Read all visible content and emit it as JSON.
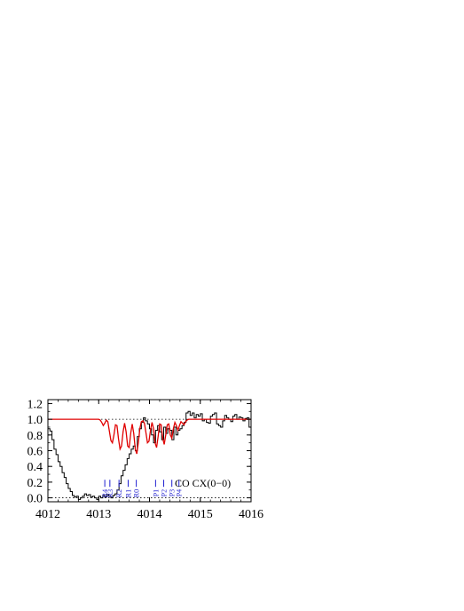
{
  "chart_data": {
    "type": "line",
    "title": "",
    "xlabel": "",
    "ylabel": "",
    "xlim": [
      4012,
      4016
    ],
    "ylim": [
      -0.05,
      1.25
    ],
    "xticks": [
      "4012",
      "4013",
      "4014",
      "4015",
      "4016"
    ],
    "yticks": [
      "0.0",
      "0.2",
      "0.4",
      "0.6",
      "0.8",
      "1.0",
      "1.2"
    ],
    "reference_lines_y": [
      0.0,
      1.0
    ],
    "colors": {
      "observed": "#000000",
      "model": "#e00000",
      "line_ids": "#1f1fd0"
    },
    "annotation": "CO CX(0−0)",
    "series": [
      {
        "style": "step",
        "x": [
          4012.0,
          4012.04,
          4012.08,
          4012.12,
          4012.16,
          4012.2,
          4012.24,
          4012.28,
          4012.32,
          4012.36,
          4012.4,
          4012.44,
          4012.48,
          4012.52,
          4012.56,
          4012.6,
          4012.64,
          4012.68,
          4012.72,
          4012.76,
          4012.8,
          4012.84,
          4012.88,
          4012.92,
          4012.96,
          4013.0,
          4013.04,
          4013.08,
          4013.12,
          4013.16,
          4013.2,
          4013.24,
          4013.28,
          4013.32,
          4013.36,
          4013.4,
          4013.44,
          4013.48,
          4013.52,
          4013.56,
          4013.6,
          4013.64,
          4013.68,
          4013.72,
          4013.76,
          4013.8,
          4013.84,
          4013.88,
          4013.92,
          4013.96,
          4014.0,
          4014.04,
          4014.08,
          4014.12,
          4014.16,
          4014.2,
          4014.24,
          4014.28,
          4014.32,
          4014.36,
          4014.4,
          4014.44,
          4014.48,
          4014.52,
          4014.56,
          4014.6,
          4014.64,
          4014.68,
          4014.72,
          4014.76,
          4014.8,
          4014.84,
          4014.88,
          4014.92,
          4014.96,
          4015.0,
          4015.04,
          4015.08,
          4015.12,
          4015.16,
          4015.2,
          4015.24,
          4015.28,
          4015.32,
          4015.36,
          4015.4,
          4015.44,
          4015.48,
          4015.52,
          4015.56,
          4015.6,
          4015.64,
          4015.68,
          4015.72,
          4015.76,
          4015.8,
          4015.84,
          4015.88,
          4015.92,
          4015.96
        ],
        "y": [
          0.88,
          0.85,
          0.74,
          0.62,
          0.55,
          0.46,
          0.4,
          0.32,
          0.26,
          0.18,
          0.12,
          0.08,
          0.03,
          0.01,
          0.02,
          -0.02,
          0.0,
          0.02,
          0.05,
          0.03,
          0.04,
          0.01,
          0.02,
          0.0,
          -0.02,
          0.02,
          0.0,
          0.03,
          0.01,
          0.04,
          0.02,
          0.0,
          0.03,
          0.05,
          0.1,
          0.18,
          0.28,
          0.35,
          0.42,
          0.5,
          0.56,
          0.62,
          0.66,
          0.6,
          0.78,
          0.88,
          0.96,
          1.02,
          0.98,
          0.94,
          0.88,
          0.8,
          0.7,
          0.86,
          0.92,
          0.84,
          0.74,
          0.9,
          0.82,
          0.88,
          0.86,
          0.74,
          0.9,
          0.8,
          0.86,
          0.88,
          0.92,
          0.96,
          1.08,
          1.1,
          1.05,
          1.08,
          1.02,
          1.06,
          1.04,
          1.07,
          0.98,
          1.0,
          0.96,
          0.95,
          1.04,
          1.06,
          1.08,
          0.94,
          0.92,
          0.9,
          0.98,
          1.05,
          1.02,
          1.0,
          0.97,
          1.04,
          1.06,
          1.0,
          1.03,
          1.02,
          0.98,
          1.01,
          1.02,
          0.9
        ]
      },
      {
        "style": "line",
        "x": [
          4012.0,
          4012.1,
          4012.2,
          4012.3,
          4012.4,
          4012.5,
          4012.6,
          4012.7,
          4012.8,
          4012.9,
          4013.0,
          4013.03,
          4013.06,
          4013.09,
          4013.12,
          4013.15,
          4013.18,
          4013.21,
          4013.24,
          4013.27,
          4013.3,
          4013.33,
          4013.36,
          4013.39,
          4013.42,
          4013.45,
          4013.48,
          4013.51,
          4013.54,
          4013.57,
          4013.6,
          4013.63,
          4013.66,
          4013.69,
          4013.72,
          4013.75,
          4013.78,
          4013.81,
          4013.84,
          4013.87,
          4013.9,
          4013.93,
          4013.96,
          4013.99,
          4014.02,
          4014.05,
          4014.08,
          4014.11,
          4014.14,
          4014.17,
          4014.2,
          4014.23,
          4014.26,
          4014.29,
          4014.32,
          4014.35,
          4014.38,
          4014.41,
          4014.44,
          4014.47,
          4014.5,
          4014.53,
          4014.56,
          4014.59,
          4014.62,
          4014.65,
          4014.68,
          4014.71,
          4014.74,
          4014.77,
          4014.8,
          4014.9,
          4015.0,
          4015.2,
          4015.4,
          4015.6,
          4015.8,
          4016.0
        ],
        "y": [
          1.0,
          1.0,
          1.0,
          1.0,
          1.0,
          1.0,
          1.0,
          1.0,
          1.0,
          1.0,
          1.0,
          0.99,
          0.96,
          0.92,
          0.95,
          0.99,
          0.97,
          0.85,
          0.73,
          0.7,
          0.8,
          0.93,
          0.92,
          0.75,
          0.62,
          0.66,
          0.84,
          0.95,
          0.84,
          0.66,
          0.64,
          0.82,
          0.94,
          0.82,
          0.62,
          0.56,
          0.7,
          0.88,
          0.97,
          0.98,
          0.95,
          0.83,
          0.7,
          0.72,
          0.86,
          0.96,
          0.88,
          0.7,
          0.64,
          0.78,
          0.94,
          0.93,
          0.76,
          0.68,
          0.8,
          0.93,
          0.94,
          0.8,
          0.76,
          0.88,
          0.96,
          0.92,
          0.86,
          0.92,
          0.97,
          0.95,
          0.93,
          0.97,
          0.99,
          1.0,
          1.0,
          1.0,
          1.0,
          1.0,
          1.0,
          1.0,
          1.0,
          1.0
        ]
      }
    ],
    "line_ids": [
      {
        "label": "R4",
        "x": 4013.12
      },
      {
        "label": "R3",
        "x": 4013.22
      },
      {
        "label": "R2",
        "x": 4013.4
      },
      {
        "label": "R1",
        "x": 4013.58
      },
      {
        "label": "R0",
        "x": 4013.74
      },
      {
        "label": "P1",
        "x": 4014.12
      },
      {
        "label": "P2",
        "x": 4014.28
      },
      {
        "label": "P3",
        "x": 4014.44
      },
      {
        "label": "P4",
        "x": 4014.58
      }
    ]
  }
}
